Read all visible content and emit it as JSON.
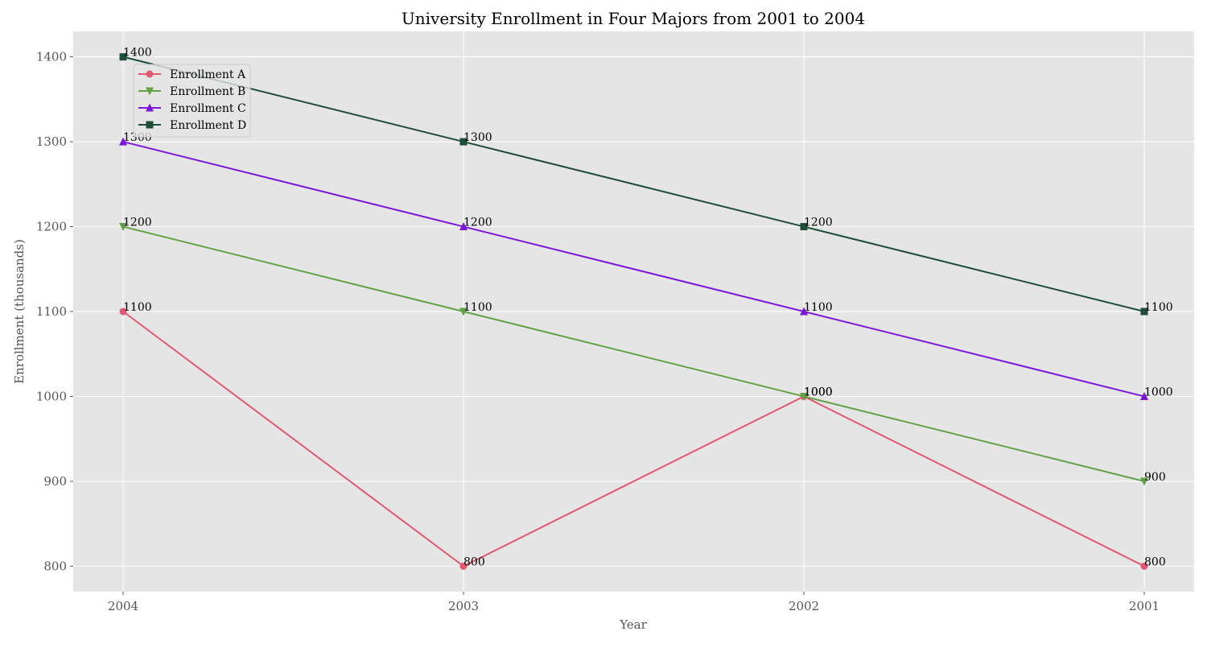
{
  "chart_data": {
    "type": "line",
    "title": "University Enrollment in Four Majors from 2001 to 2004",
    "xlabel": "Year",
    "ylabel": "Enrollment (thousands)",
    "categories": [
      "2004",
      "2003",
      "2002",
      "2001"
    ],
    "ylim": [
      770,
      1430
    ],
    "yticks": [
      800,
      900,
      1000,
      1100,
      1200,
      1300,
      1400
    ],
    "grid": true,
    "legend_position": "top-left",
    "series": [
      {
        "name": "Enrollment A",
        "color": "#e15872",
        "marker": "circle",
        "values": [
          1100,
          800,
          1000,
          800
        ]
      },
      {
        "name": "Enrollment B",
        "color": "#62a146",
        "marker": "triangle-down",
        "values": [
          1200,
          1100,
          1000,
          900
        ]
      },
      {
        "name": "Enrollment C",
        "color": "#7a17d9",
        "marker": "triangle-up",
        "values": [
          1300,
          1200,
          1100,
          1000
        ]
      },
      {
        "name": "Enrollment D",
        "color": "#1f4d37",
        "marker": "square",
        "values": [
          1400,
          1300,
          1200,
          1100
        ]
      }
    ]
  }
}
